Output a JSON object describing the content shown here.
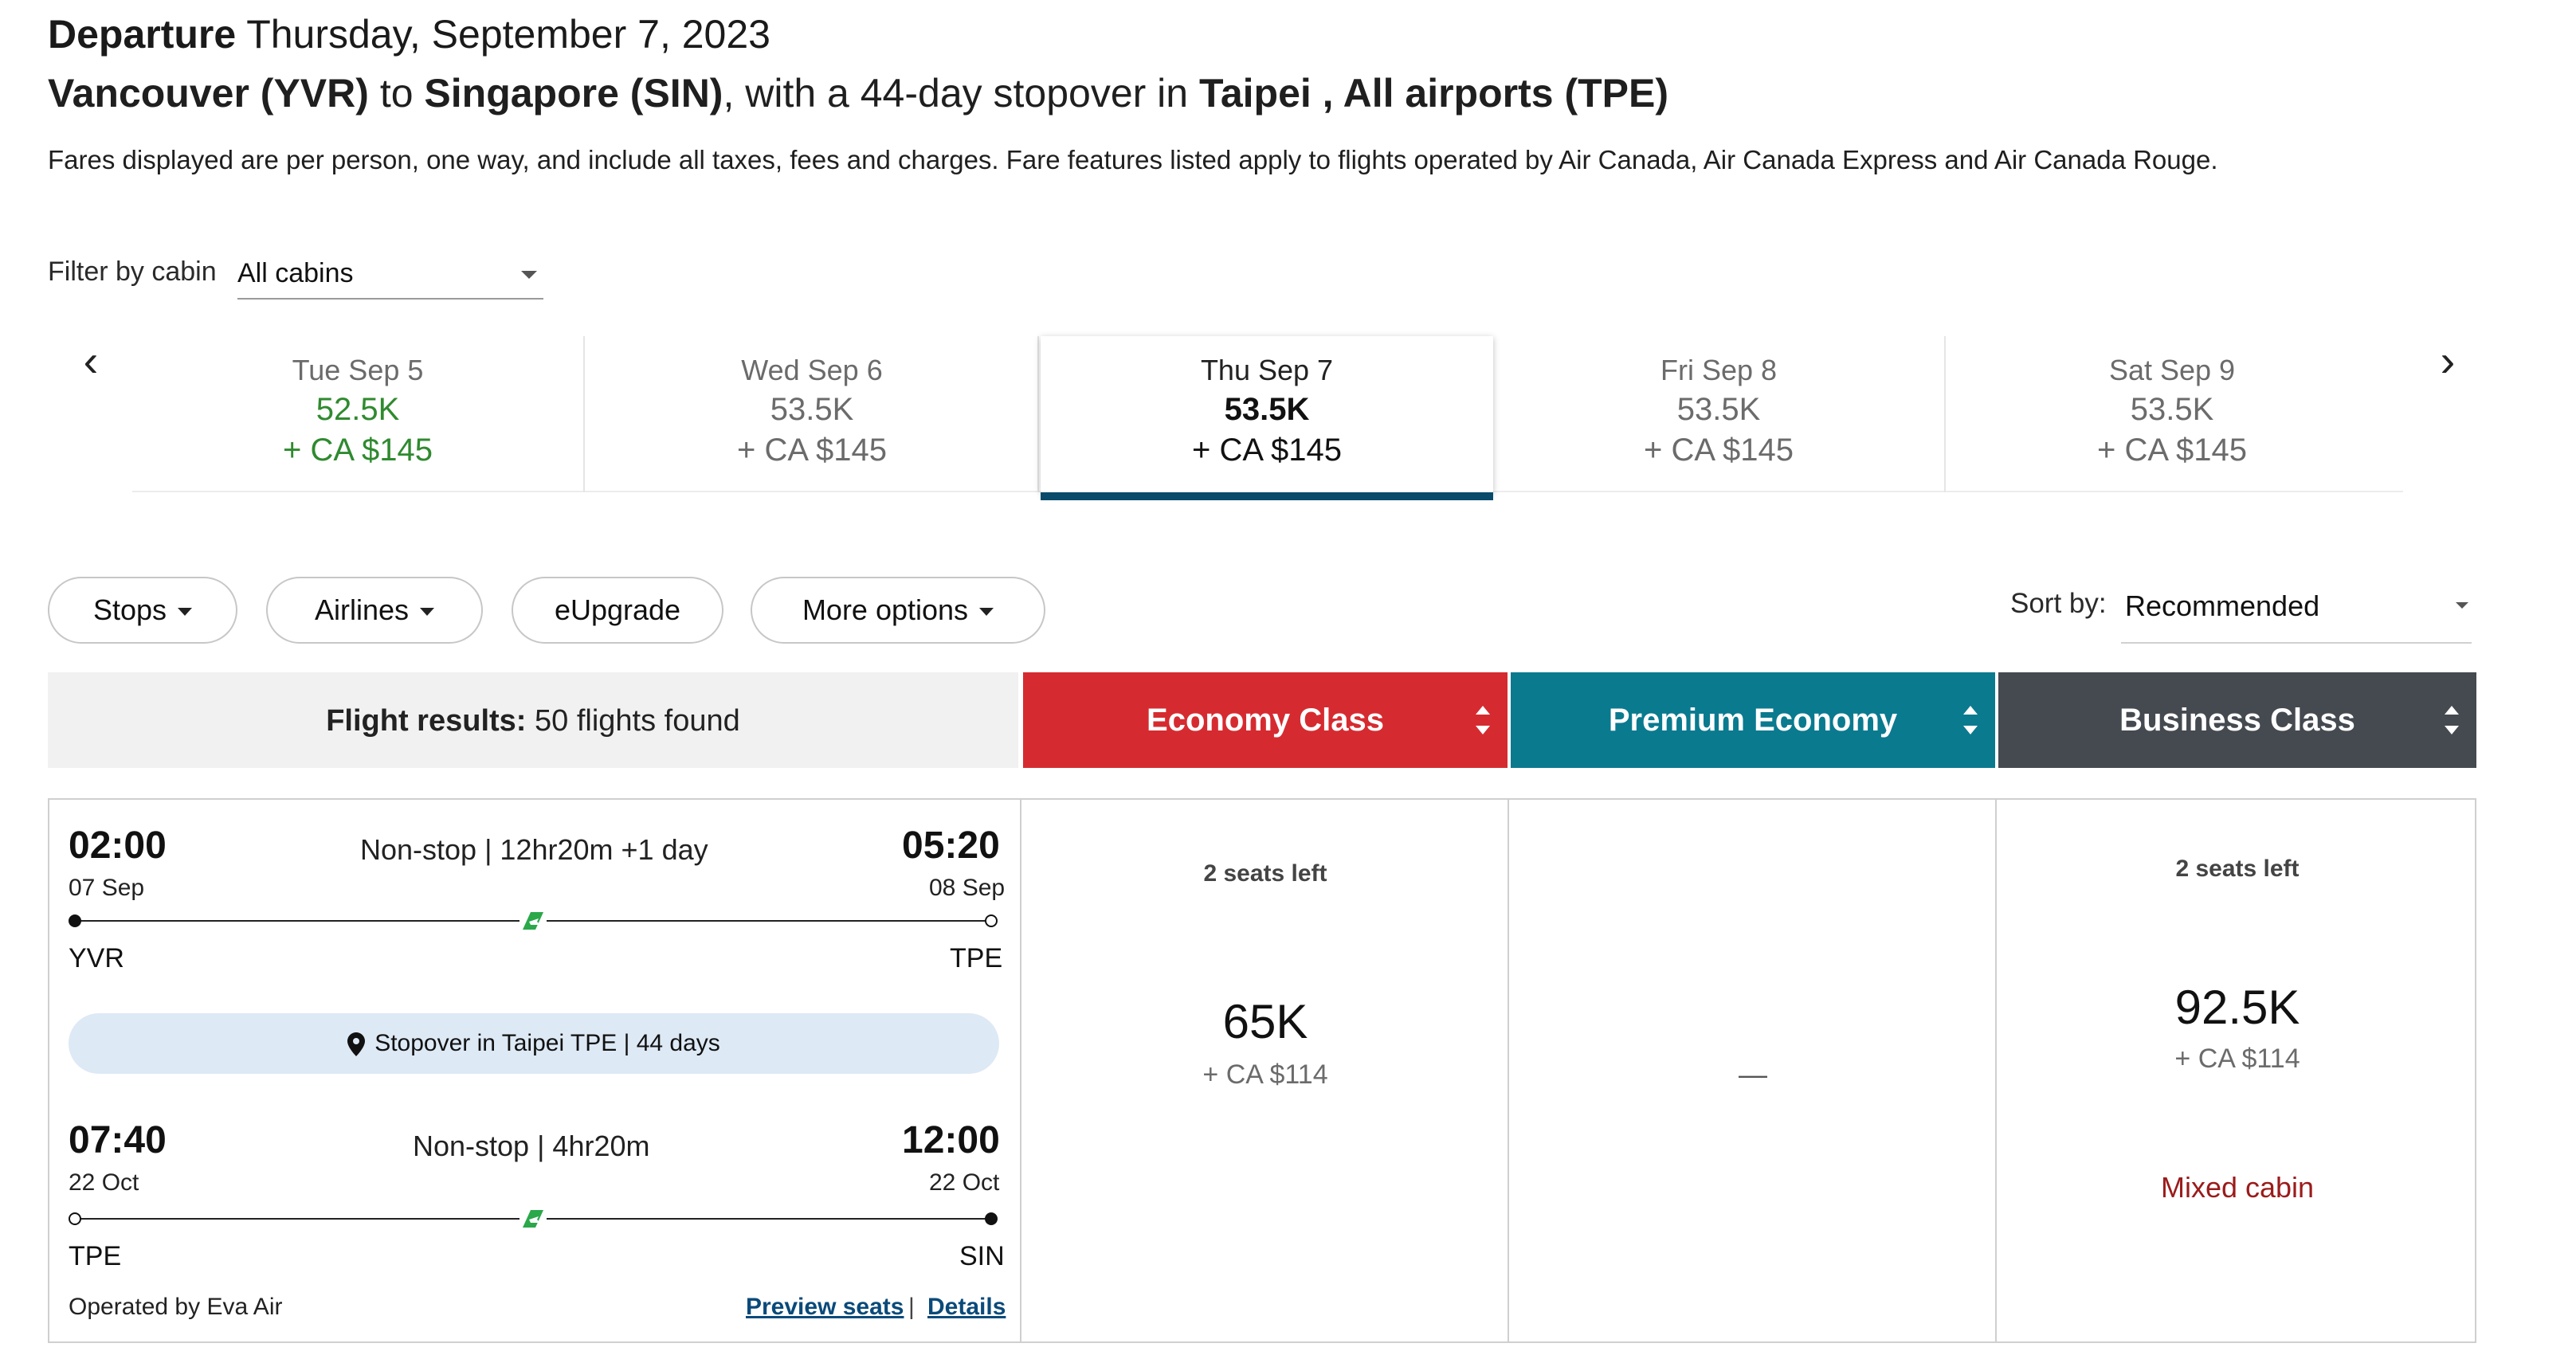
{
  "header": {
    "departure_label": "Departure",
    "departure_date": "Thursday, September 7, 2023",
    "route_from": "Vancouver (YVR)",
    "route_to_word": "to",
    "route_to": "Singapore (SIN)",
    "route_stop_text": ", with a 44-day stopover in",
    "route_stop": "Taipei , All airports (TPE)",
    "fare_note": "Fares displayed are per person, one way, and include all taxes, fees and charges. Fare features listed apply to flights operated by Air Canada, Air Canada Express and Air Canada Rouge."
  },
  "filter": {
    "label": "Filter by cabin",
    "value": "All cabins"
  },
  "date_strip": {
    "prev_icon": "chevron-left-icon",
    "next_icon": "chevron-right-icon",
    "prev_glyph": "‹",
    "next_glyph": "›",
    "days": [
      {
        "day": "Tue Sep 5",
        "points": "52.5K",
        "cash": "+ CA $145"
      },
      {
        "day": "Wed Sep 6",
        "points": "53.5K",
        "cash": "+ CA $145"
      },
      {
        "day": "Thu Sep 7",
        "points": "53.5K",
        "cash": "+ CA $145"
      },
      {
        "day": "Fri Sep 8",
        "points": "53.5K",
        "cash": "+ CA $145"
      },
      {
        "day": "Sat Sep 9",
        "points": "53.5K",
        "cash": "+ CA $145"
      }
    ],
    "selected_index": 2,
    "lowest_fare_color": "#2f8a2f",
    "selected_bar_color": "#0a4a6b"
  },
  "filters_bar": {
    "stops": "Stops",
    "airlines": "Airlines",
    "eupgrade": "eUpgrade",
    "more_options": "More options",
    "sort_label": "Sort by:",
    "sort_value": "Recommended"
  },
  "results_header": {
    "label": "Flight results:",
    "count": "50 flights found"
  },
  "cabins": [
    {
      "name": "Economy Class",
      "color": "#d52b30"
    },
    {
      "name": "Premium Economy",
      "color": "#0a7a8f"
    },
    {
      "name": "Business Class",
      "color": "#454a50"
    }
  ],
  "flight": {
    "segment1": {
      "depart_time": "02:00",
      "depart_date": "07 Sep",
      "depart_airport": "YVR",
      "info": "Non-stop | 12hr20m +1 day",
      "arrive_time": "05:20",
      "arrive_date": "08 Sep",
      "arrive_airport": "TPE"
    },
    "stopover": "Stopover in Taipei TPE | 44 days",
    "segment2": {
      "depart_time": "07:40",
      "depart_date": "22 Oct",
      "depart_airport": "TPE",
      "info": "Non-stop | 4hr20m",
      "arrive_time": "12:00",
      "arrive_date": "22 Oct",
      "arrive_airport": "SIN"
    },
    "operated_by": "Operated by Eva Air",
    "preview_seats": "Preview seats",
    "separator": "|",
    "details": "Details",
    "airline_icon_color": "#2aa84a"
  },
  "fares": {
    "economy": {
      "seats": "2 seats left",
      "points": "65K",
      "cash": "+ CA $114"
    },
    "premium": {
      "empty": "—"
    },
    "business": {
      "seats": "2 seats left",
      "points": "92.5K",
      "cash": "+ CA $114",
      "note": "Mixed cabin"
    }
  }
}
